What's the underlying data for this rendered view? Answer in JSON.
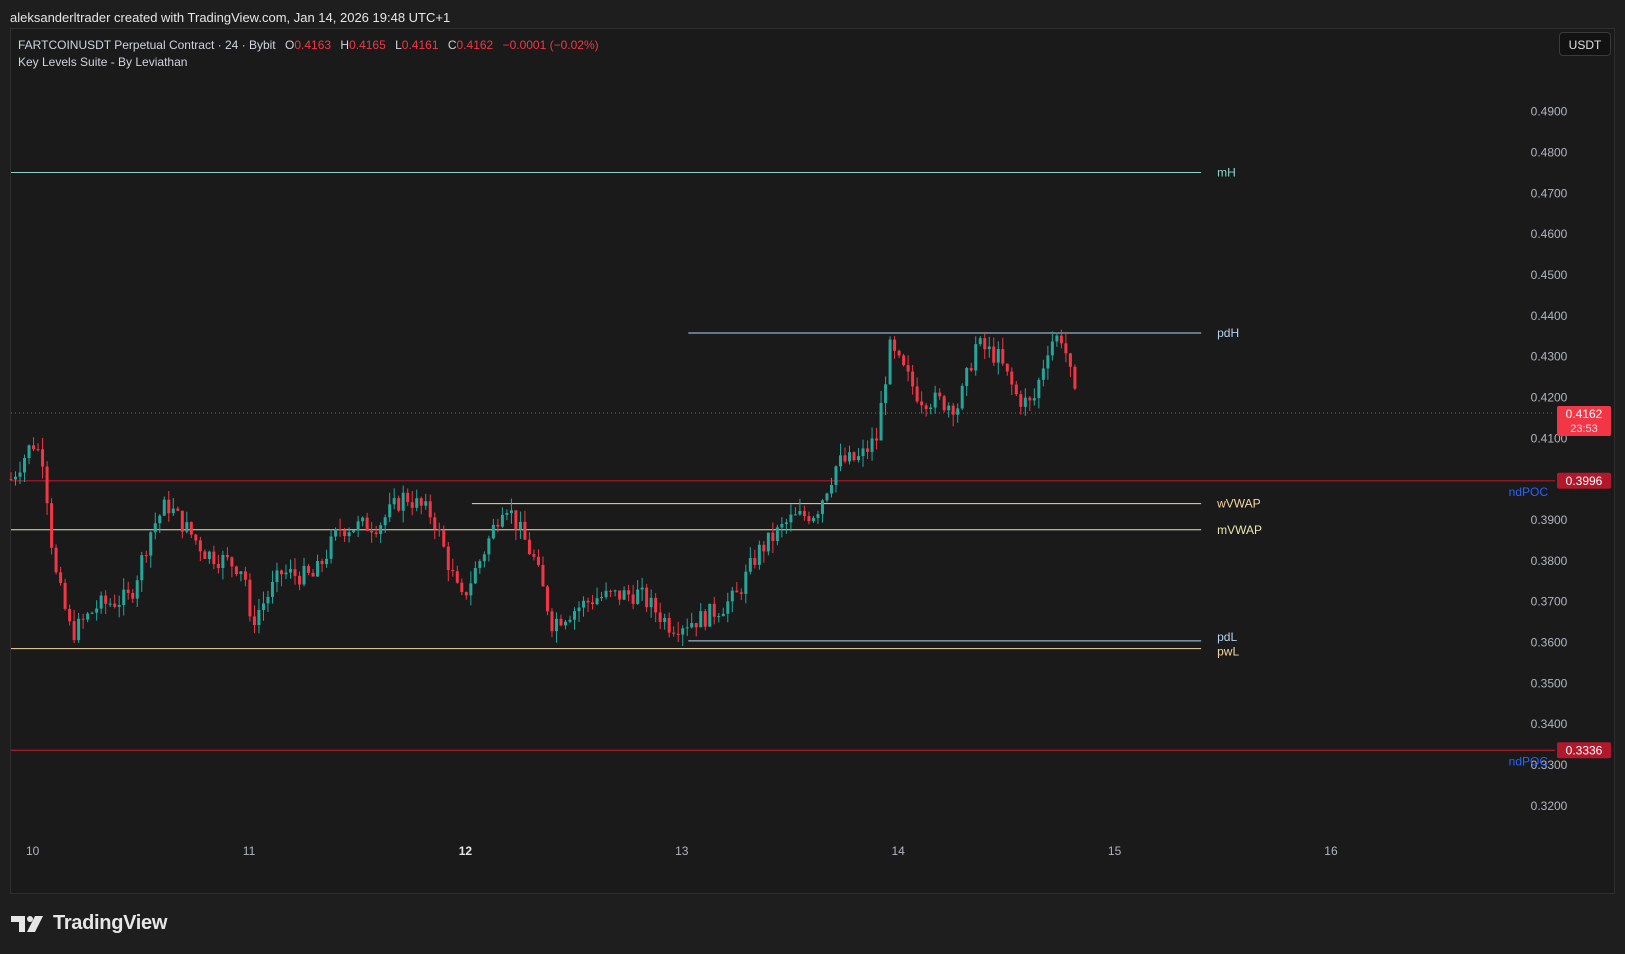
{
  "header": {
    "credit": "aleksanderltrader created with TradingView.com, Jan 14, 2026 19:48 UTC+1"
  },
  "legend": {
    "symbol": "FARTCOINUSDT Perpetual Contract · 24 · Bybit",
    "open_label": "O",
    "open": "0.4163",
    "high_label": "H",
    "high": "0.4165",
    "low_label": "L",
    "low": "0.4161",
    "close_label": "C",
    "close": "0.4162",
    "change": "−0.0001 (−0.02%)",
    "indicator": "Key Levels Suite - By Leviathan"
  },
  "currency_button": "USDT",
  "footer": {
    "brand": "TradingView"
  },
  "colors": {
    "up": "#26a69a",
    "down": "#f23645",
    "background": "#1a1a1a",
    "mH": "#8fd3c8",
    "pdH": "#b3d4f0",
    "pdL": "#b3d4f0",
    "wVWAP": "#f5d6a6",
    "mVWAP": "#e6e6b0",
    "pwL": "#f5d6a6",
    "ndPOC": "#b2182b",
    "ndPOC_label": "#2962ff"
  },
  "chart_data": {
    "type": "candlestick",
    "x_ticks": [
      {
        "label": "10",
        "day": 10,
        "bold": false
      },
      {
        "label": "11",
        "day": 11,
        "bold": false
      },
      {
        "label": "12",
        "day": 12,
        "bold": true
      },
      {
        "label": "13",
        "day": 13,
        "bold": false
      },
      {
        "label": "14",
        "day": 14,
        "bold": false
      },
      {
        "label": "15",
        "day": 15,
        "bold": false
      },
      {
        "label": "16",
        "day": 16,
        "bold": false
      }
    ],
    "y_ticks": [
      "0.4900",
      "0.4800",
      "0.4700",
      "0.4600",
      "0.4500",
      "0.4400",
      "0.4300",
      "0.4200",
      "0.4100",
      "0.3900",
      "0.3800",
      "0.3700",
      "0.3600",
      "0.3500",
      "0.3400",
      "0.3300",
      "0.3200"
    ],
    "ylim": [
      0.3126,
      0.5012
    ],
    "xlim": [
      9.9,
      17.1
    ],
    "last_price": {
      "label": "0.4162",
      "countdown": "23:53",
      "value": 0.4162
    },
    "levels": [
      {
        "name": "mH",
        "value": 0.4751,
        "x_start": 9.9,
        "x_end": 15.4,
        "color_key": "mH",
        "label_visible": true
      },
      {
        "name": "pdH",
        "value": 0.4358,
        "x_start": 13.03,
        "x_end": 15.4,
        "color_key": "pdH",
        "label_visible": true
      },
      {
        "name": "wVWAP",
        "value": 0.394,
        "x_start": 12.03,
        "x_end": 15.4,
        "color_key": "wVWAP",
        "label_visible": true
      },
      {
        "name": "mVWAP",
        "value": 0.3876,
        "x_start": 9.9,
        "x_end": 15.4,
        "color_key": "mVWAP",
        "label_visible": true
      },
      {
        "name": "pdL",
        "value": 0.3604,
        "x_start": 13.03,
        "x_end": 15.4,
        "color_key": "pdL",
        "label_visible": true
      },
      {
        "name": "pwL",
        "value": 0.3585,
        "x_start": 9.9,
        "x_end": 15.4,
        "color_key": "pwL",
        "label_visible": true
      }
    ],
    "poc_levels": [
      {
        "name": "ndPOC",
        "value": 0.3996,
        "price_label": "0.3996"
      },
      {
        "name": "ndPOC",
        "value": 0.3336,
        "price_label": "0.3336"
      }
    ],
    "price_path": [
      {
        "day": 9.9,
        "price": 0.4
      },
      {
        "day": 10.0,
        "price": 0.409
      },
      {
        "day": 10.05,
        "price": 0.405
      },
      {
        "day": 10.1,
        "price": 0.378
      },
      {
        "day": 10.18,
        "price": 0.362
      },
      {
        "day": 10.3,
        "price": 0.369
      },
      {
        "day": 10.45,
        "price": 0.371
      },
      {
        "day": 10.55,
        "price": 0.388
      },
      {
        "day": 10.62,
        "price": 0.394
      },
      {
        "day": 10.8,
        "price": 0.382
      },
      {
        "day": 10.98,
        "price": 0.378
      },
      {
        "day": 11.0,
        "price": 0.364
      },
      {
        "day": 11.15,
        "price": 0.377
      },
      {
        "day": 11.3,
        "price": 0.376
      },
      {
        "day": 11.42,
        "price": 0.388
      },
      {
        "day": 11.6,
        "price": 0.389
      },
      {
        "day": 11.72,
        "price": 0.396
      },
      {
        "day": 11.85,
        "price": 0.391
      },
      {
        "day": 11.98,
        "price": 0.37
      },
      {
        "day": 12.1,
        "price": 0.384
      },
      {
        "day": 12.18,
        "price": 0.395
      },
      {
        "day": 12.32,
        "price": 0.38
      },
      {
        "day": 12.4,
        "price": 0.365
      },
      {
        "day": 12.6,
        "price": 0.371
      },
      {
        "day": 12.8,
        "price": 0.372
      },
      {
        "day": 12.95,
        "price": 0.364
      },
      {
        "day": 13.1,
        "price": 0.366
      },
      {
        "day": 13.25,
        "price": 0.371
      },
      {
        "day": 13.35,
        "price": 0.382
      },
      {
        "day": 13.5,
        "price": 0.39
      },
      {
        "day": 13.62,
        "price": 0.392
      },
      {
        "day": 13.72,
        "price": 0.404
      },
      {
        "day": 13.82,
        "price": 0.405
      },
      {
        "day": 13.9,
        "price": 0.41
      },
      {
        "day": 13.96,
        "price": 0.432
      },
      {
        "day": 14.1,
        "price": 0.42
      },
      {
        "day": 14.28,
        "price": 0.418
      },
      {
        "day": 14.36,
        "price": 0.433
      },
      {
        "day": 14.46,
        "price": 0.43
      },
      {
        "day": 14.55,
        "price": 0.42
      },
      {
        "day": 14.62,
        "price": 0.418
      },
      {
        "day": 14.7,
        "price": 0.434
      },
      {
        "day": 14.76,
        "price": 0.435
      },
      {
        "day": 14.83,
        "price": 0.4162
      }
    ]
  }
}
